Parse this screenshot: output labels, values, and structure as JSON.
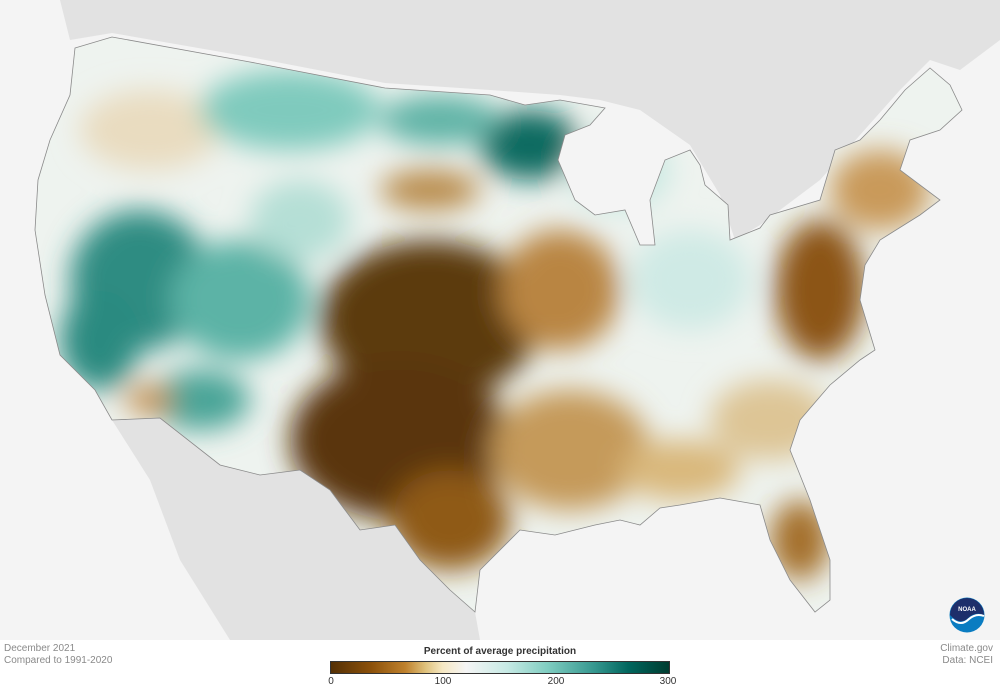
{
  "footer_left": {
    "date": "December 2021",
    "baseline": "Compared to 1991-2020"
  },
  "footer_right": {
    "source": "Climate.gov",
    "data": "Data: NCEI"
  },
  "legend": {
    "title": "Percent of average precipitation",
    "ticks": [
      "0",
      "100",
      "200",
      "300"
    ],
    "range": [
      0,
      300
    ],
    "colors": [
      "#543005",
      "#bf812d",
      "#f6e8c3",
      "#f5f5f5",
      "#80cdc1",
      "#01665e",
      "#003c30"
    ]
  },
  "logo": {
    "text": "NOAA",
    "icon": "noaa-logo"
  },
  "map": {
    "region": "Contiguous United States",
    "variable": "precipitation percent of average",
    "dry_color": "#8c510a",
    "wet_color": "#01665e"
  }
}
